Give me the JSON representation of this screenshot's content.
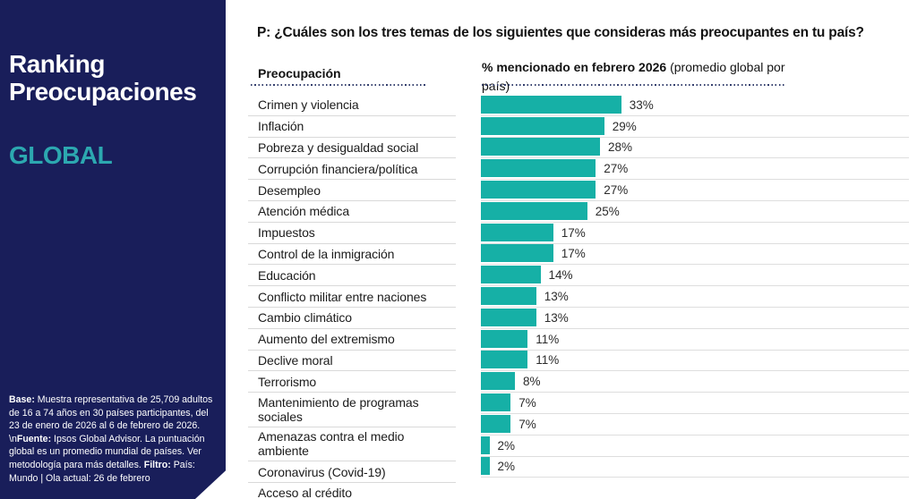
{
  "sidebar": {
    "title_line1": "Ranking",
    "title_line2": "Preocupaciones",
    "subtitle": "GLOBAL",
    "footnote": {
      "base_label": "Base:",
      "base_text": " Muestra representativa de 25,709 adultos de 16 a 74 años en 30 países participantes, del 23 de enero de 2026 al 6 de febrero de 2026. \\n",
      "fuente_label": "Fuente:",
      "fuente_text": " Ipsos Global Advisor. La puntuación global es un promedio mundial de países. Ver metodología para más detalles. ",
      "filtro_label": "Filtro:",
      "filtro_text": " País: Mundo | Ola actual: 26 de febrero"
    },
    "colors": {
      "background": "#191e5a",
      "subtitle_teal": "#2ca8b0"
    }
  },
  "main": {
    "question": "P: ¿Cuáles son los tres temas de los siguientes que consideras más preocupantes en tu país?",
    "col_header_left": "Preocupación",
    "col_header_right_bold": "% mencionado en febrero 2026",
    "col_header_right_regular": " (promedio global por país)"
  },
  "chart_data": {
    "type": "bar",
    "orientation": "horizontal",
    "title": "% mencionado en febrero 2026 (promedio global por país)",
    "xlabel": "",
    "ylabel": "Preocupación",
    "xlim": [
      0,
      40
    ],
    "grid": false,
    "bar_color": "#16b0a6",
    "categories": [
      "Crimen y violencia",
      "Inflación",
      "Pobreza y desigualdad social",
      "Corrupción financiera/política",
      "Desempleo",
      "Atención médica",
      "Impuestos",
      "Control de la inmigración",
      "Educación",
      "Conflicto militar entre naciones",
      "Cambio climático",
      "Aumento del extremismo",
      "Declive moral",
      "Terrorismo",
      "Mantenimiento de programas sociales",
      "Amenazas contra el medio ambiente",
      "Coronavirus (Covid-19)",
      "Acceso al crédito"
    ],
    "values": [
      33,
      29,
      28,
      27,
      27,
      25,
      17,
      17,
      14,
      13,
      13,
      11,
      11,
      8,
      7,
      7,
      2,
      2
    ],
    "value_labels": [
      "33%",
      "29%",
      "28%",
      "27%",
      "27%",
      "25%",
      "17%",
      "17%",
      "14%",
      "13%",
      "13%",
      "11%",
      "11%",
      "8%",
      "7%",
      "7%",
      "2%",
      "2%"
    ],
    "two_line_label_indices": [
      14,
      15
    ]
  }
}
